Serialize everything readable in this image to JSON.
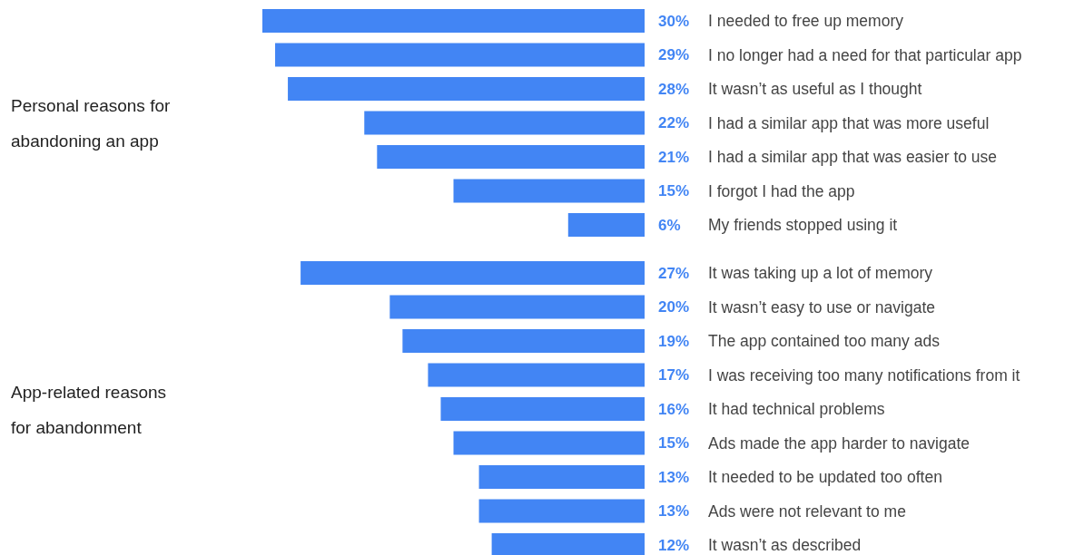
{
  "chart_data": [
    {
      "type": "bar",
      "orientation": "horizontal",
      "ylabel": "Personal reasons for abandoning an app",
      "color": "#4285f4",
      "categories": [
        "I needed to free up memory",
        "I no longer had a need for that particular app",
        "It wasn’t as useful as I thought",
        "I had a similar app that was more useful",
        "I had a similar app that was easier to use",
        "I forgot I had the app",
        "My friends stopped using it"
      ],
      "values": [
        30,
        29,
        28,
        22,
        21,
        15,
        6
      ],
      "value_labels": [
        "30%",
        "29%",
        "28%",
        "22%",
        "21%",
        "15%",
        "6%"
      ]
    },
    {
      "type": "bar",
      "orientation": "horizontal",
      "ylabel": "App-related reasons for abandonment",
      "color": "#4285f4",
      "categories": [
        "It was taking up a lot of memory",
        "It wasn’t easy to use or navigate",
        "The app contained too many ads",
        "I was receiving too many notifications from it",
        "It had technical problems",
        "Ads made the app harder to navigate",
        "It needed to be updated too often",
        "Ads were not relevant to me",
        "It wasn’t as described"
      ],
      "values": [
        27,
        20,
        19,
        17,
        16,
        15,
        13,
        13,
        12
      ],
      "value_labels": [
        "27%",
        "20%",
        "19%",
        "17%",
        "16%",
        "15%",
        "13%",
        "13%",
        "12%"
      ]
    }
  ]
}
